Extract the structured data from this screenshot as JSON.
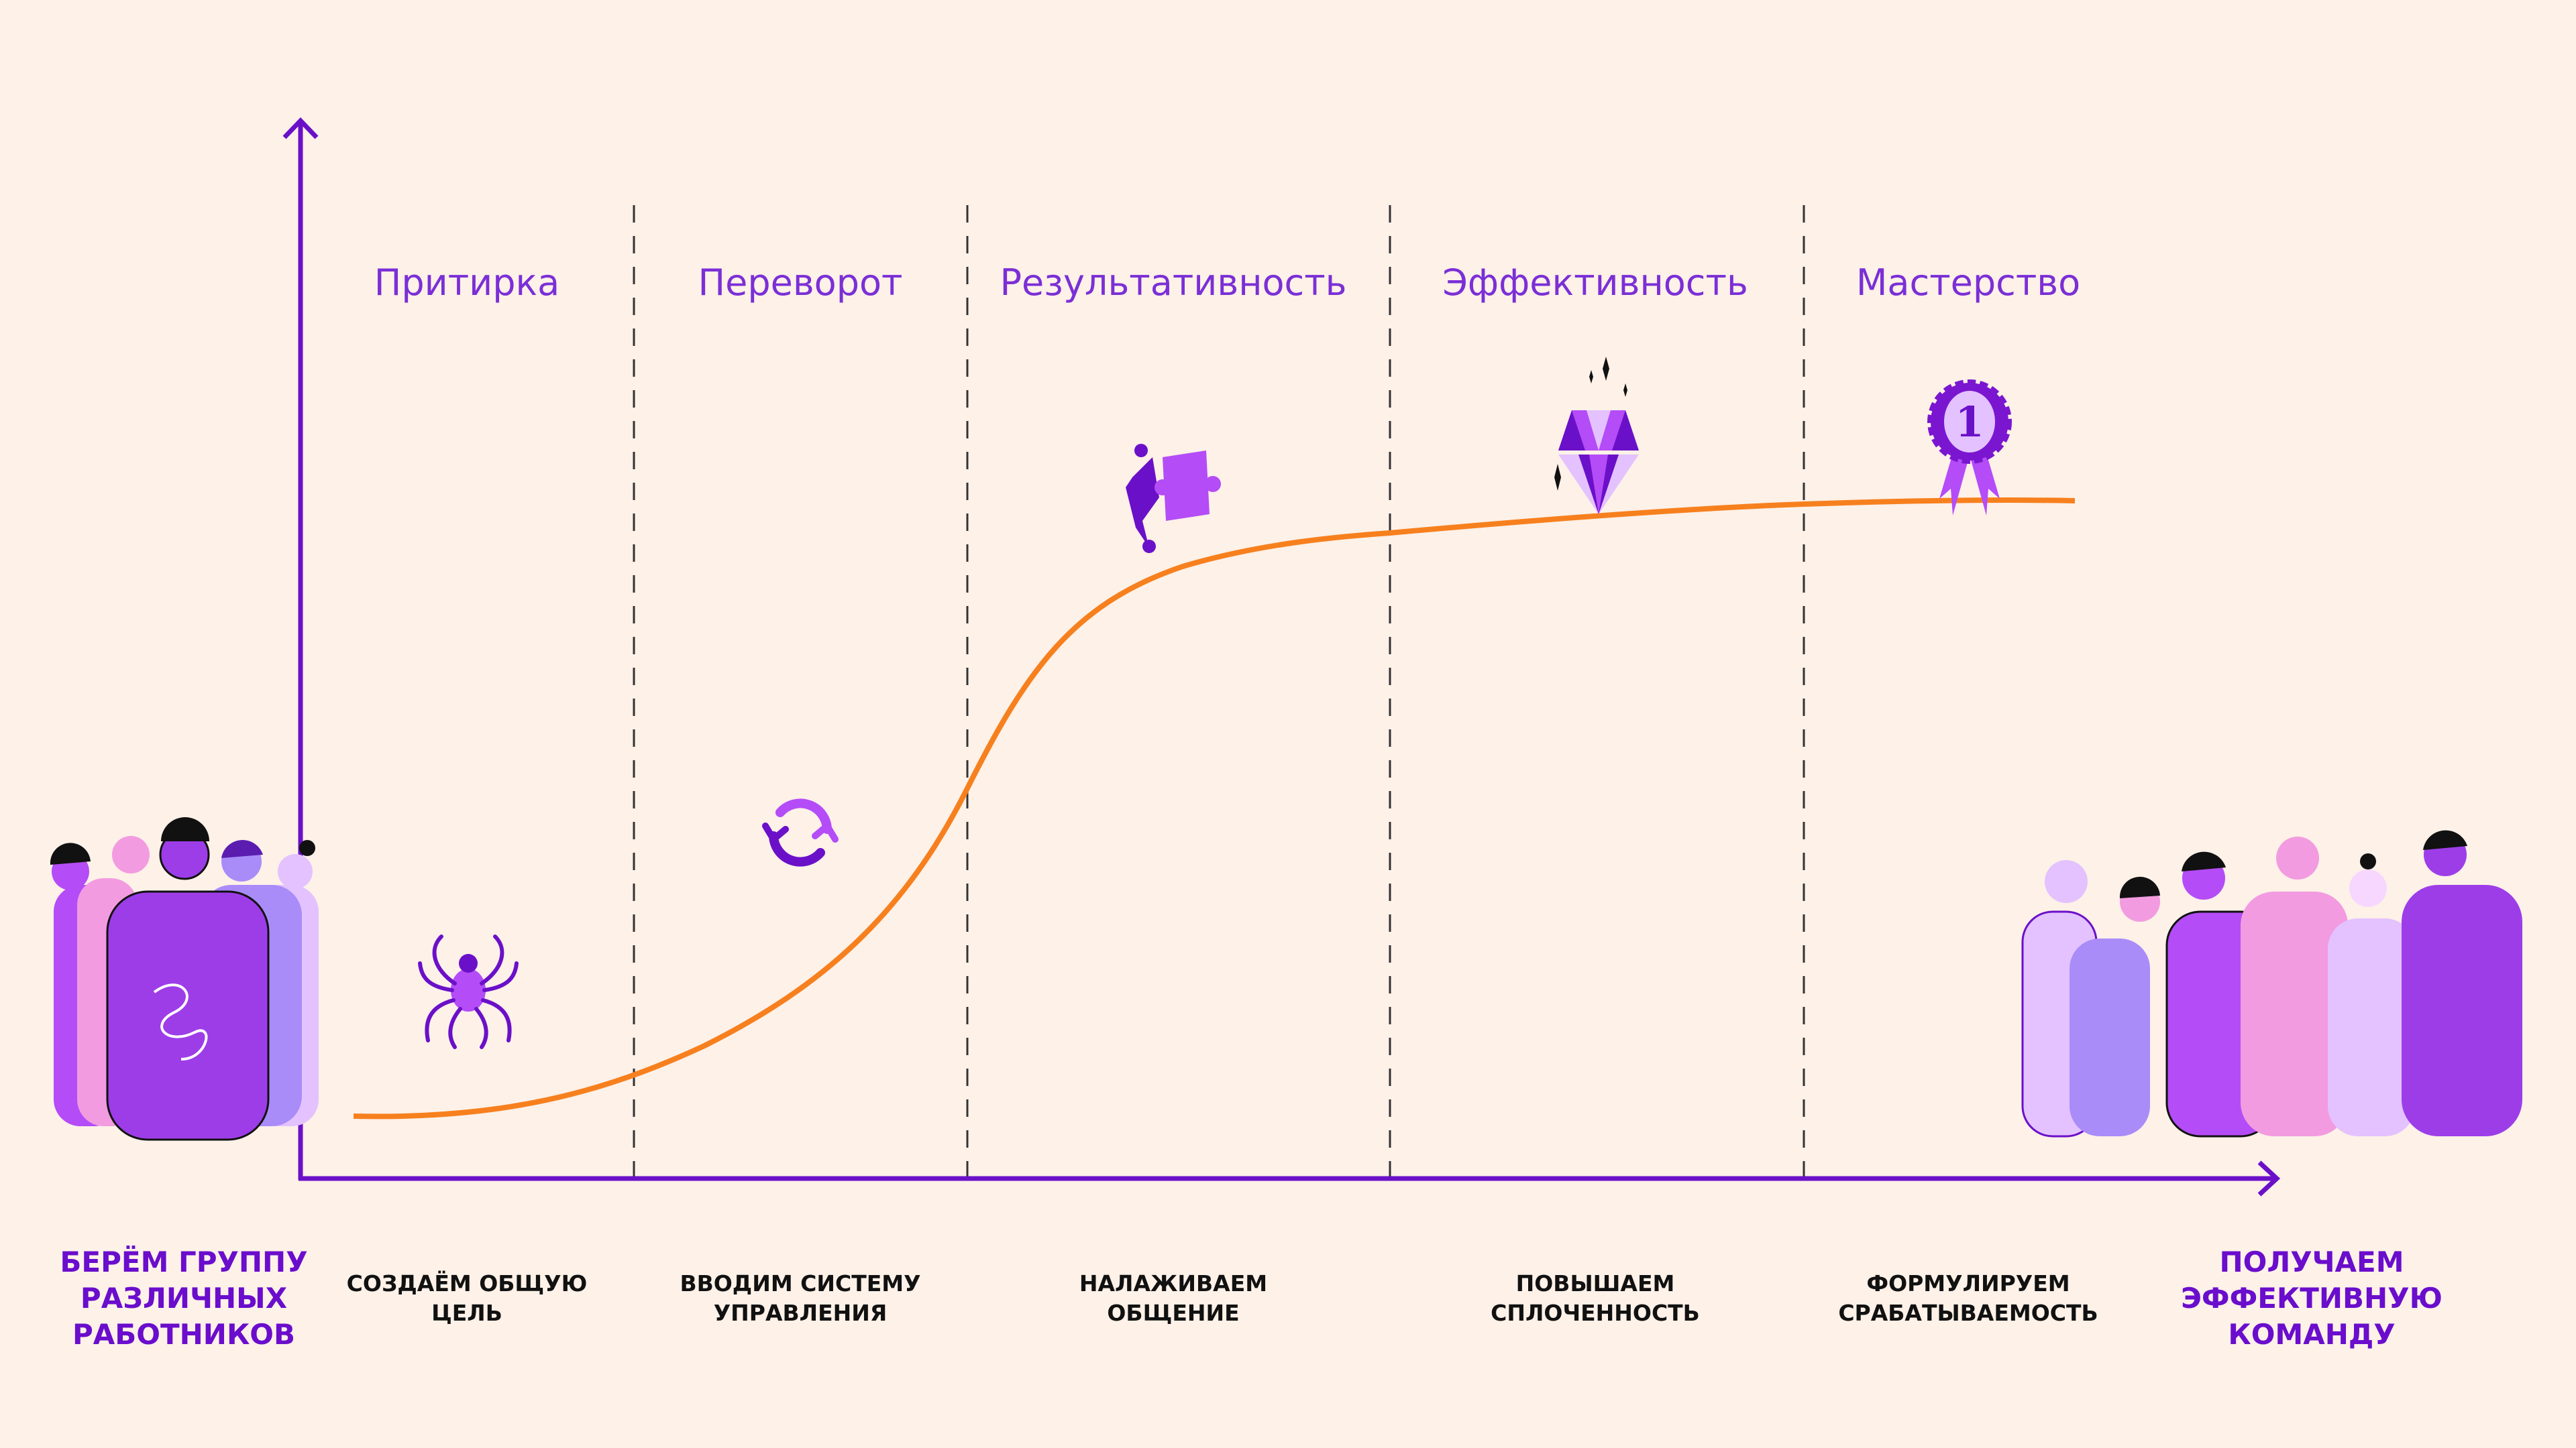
{
  "colors": {
    "background": "#fdf1e8",
    "accent": "#6b10c9",
    "curve": "#f7801e",
    "title": "#7b2fd6"
  },
  "start_label": [
    "БЕРЁМ ГРУППУ",
    "РАЗЛИЧНЫХ",
    "РАБОТНИКОВ"
  ],
  "end_label": [
    "ПОЛУЧАЕМ",
    "ЭФФЕКТИВНУЮ",
    "КОМАНДУ"
  ],
  "stages": [
    {
      "title": "Притирка",
      "desc": [
        "СОЗДАЁМ ОБЩУЮ",
        "ЦЕЛЬ"
      ],
      "icon": "spider-icon"
    },
    {
      "title": "Переворот",
      "desc": [
        "ВВОДИМ СИСТЕМУ",
        "УПРАВЛЕНИЯ"
      ],
      "icon": "refresh-icon"
    },
    {
      "title": "Результативность",
      "desc": [
        "НАЛАЖИВАЕМ",
        "ОБЩЕНИЕ"
      ],
      "icon": "puzzle-icon"
    },
    {
      "title": "Эффективность",
      "desc": [
        "ПОВЫШАЕМ",
        "СПЛОЧЕННОСТЬ"
      ],
      "icon": "diamond-icon"
    },
    {
      "title": "Мастерство",
      "desc": [
        "ФОРМУЛИРУЕМ",
        "СРАБАТЫВАЕМОСТЬ"
      ],
      "icon": "medal-icon"
    }
  ],
  "medal_number": "1"
}
